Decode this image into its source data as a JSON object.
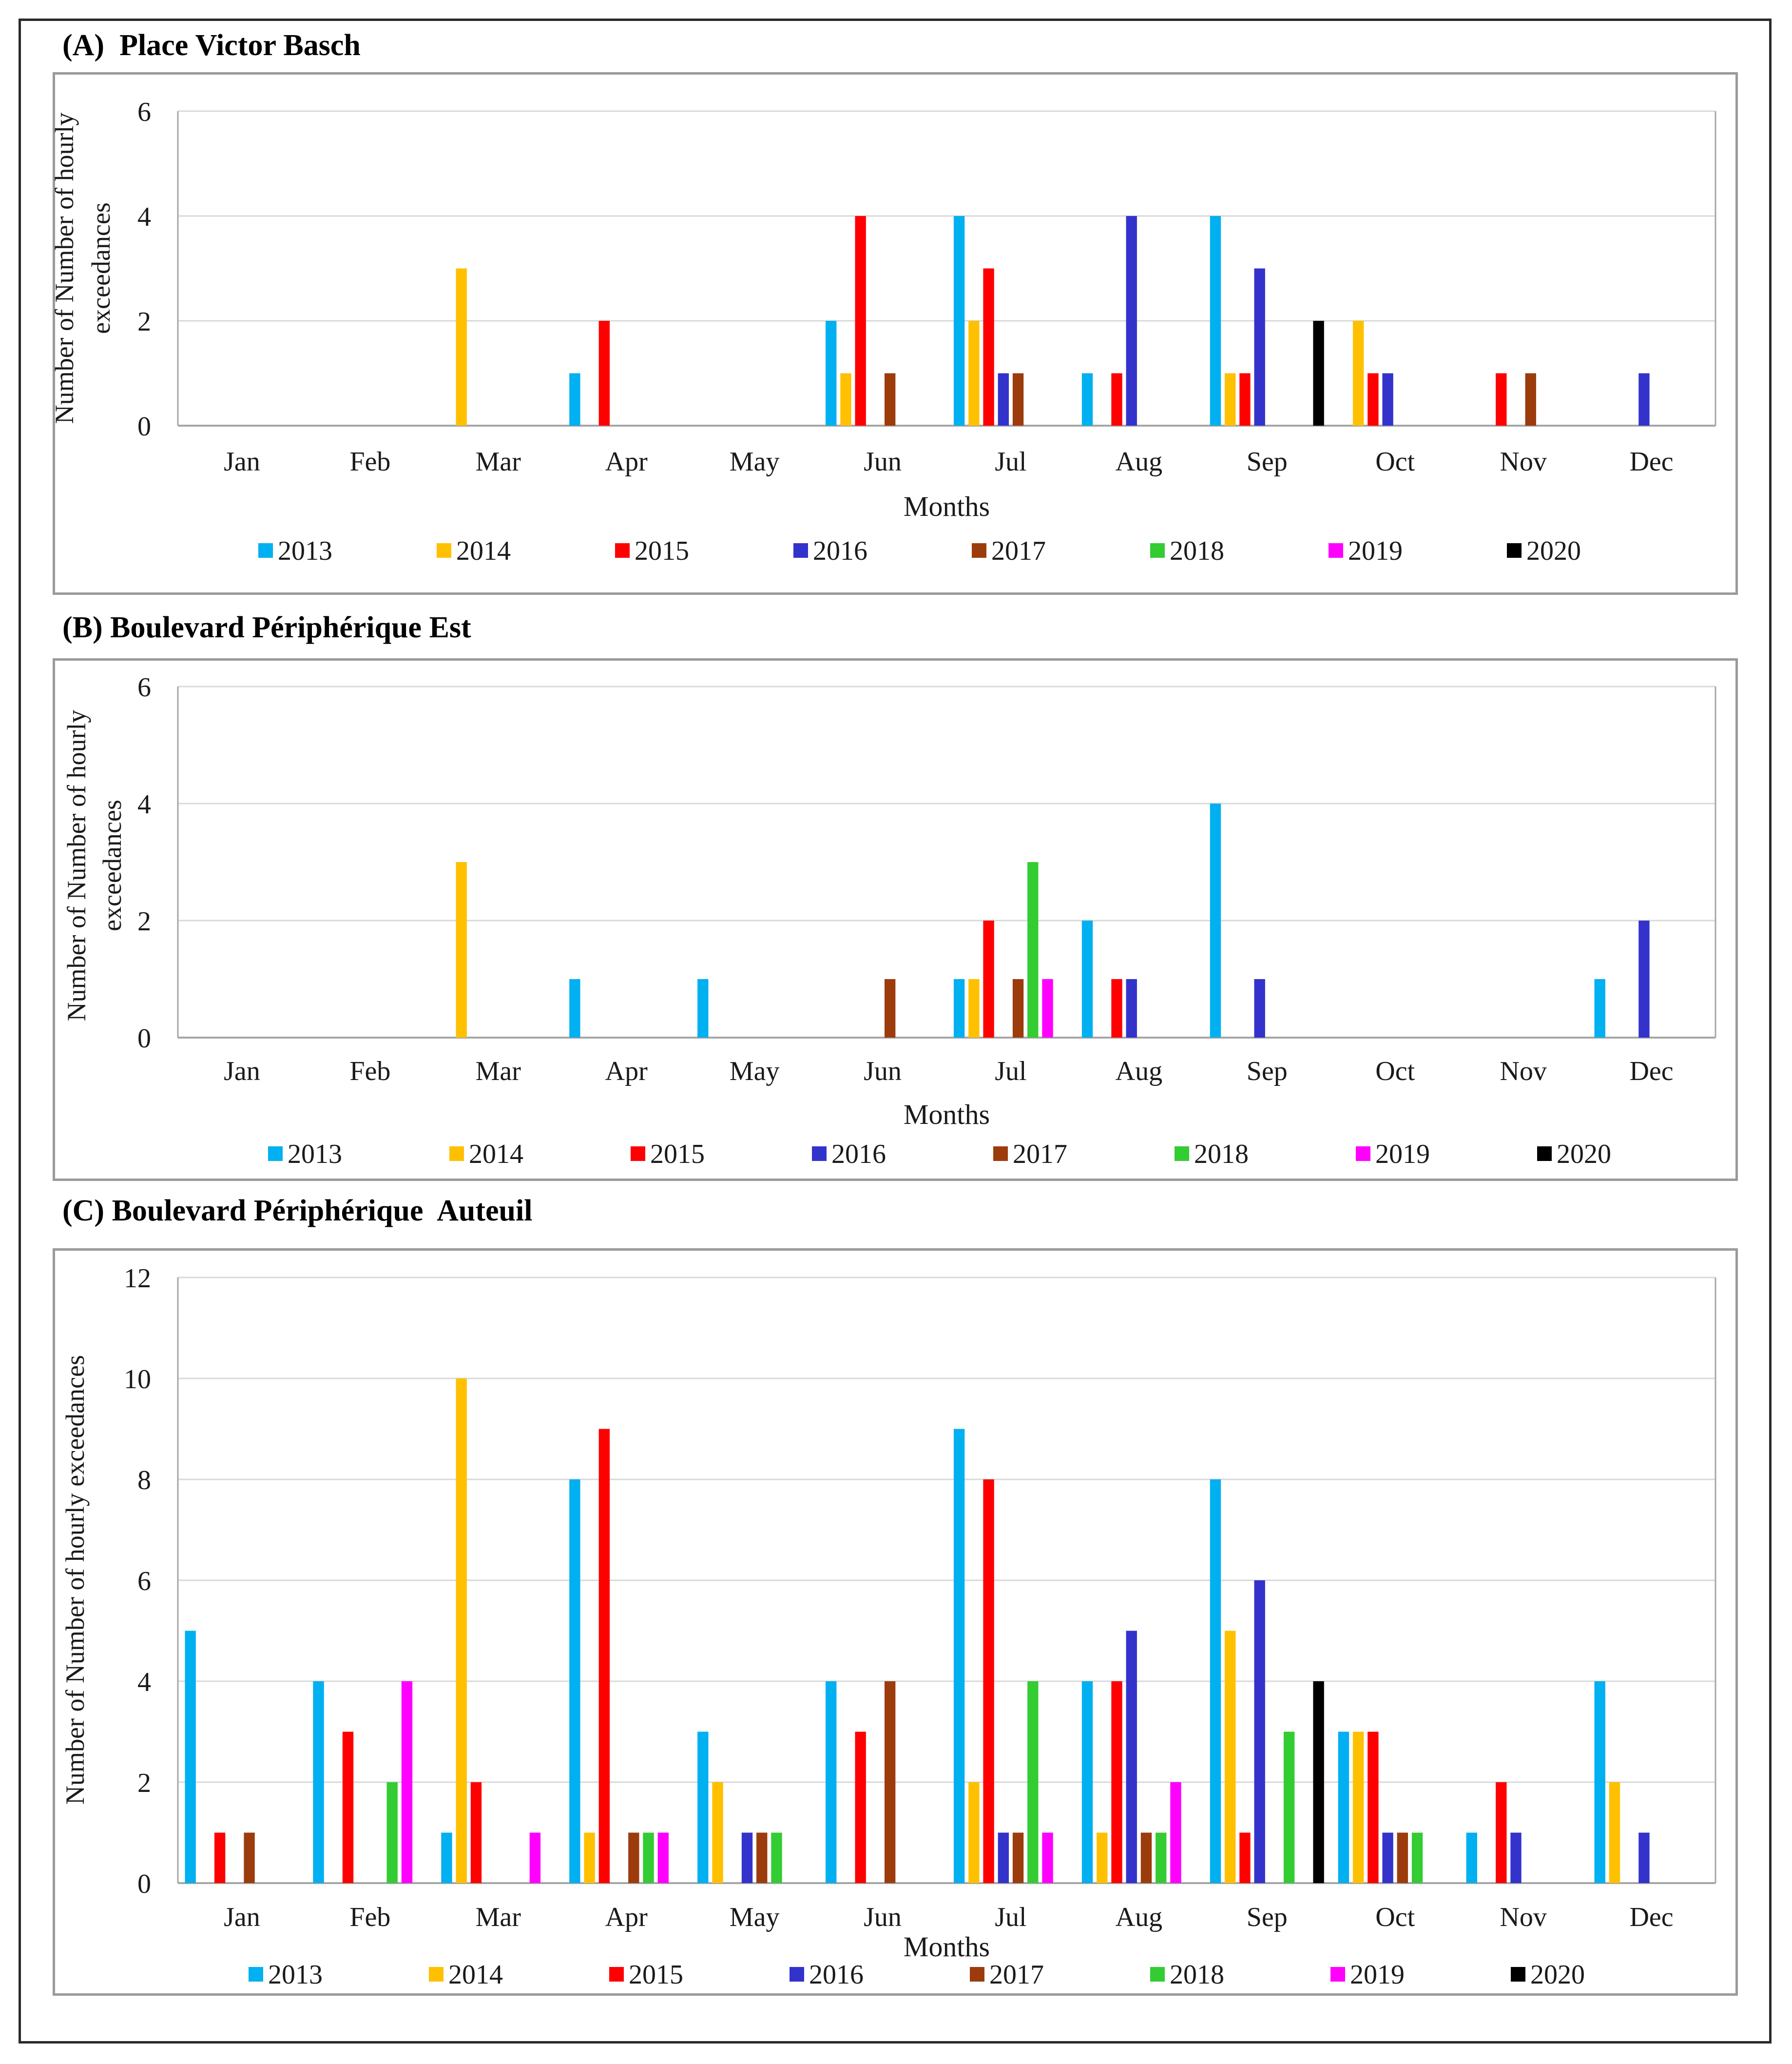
{
  "months": [
    "Jan",
    "Feb",
    "Mar",
    "Apr",
    "May",
    "Jun",
    "Jul",
    "Aug",
    "Sep",
    "Oct",
    "Nov",
    "Dec"
  ],
  "years": [
    "2013",
    "2014",
    "2015",
    "2016",
    "2017",
    "2018",
    "2019",
    "2020"
  ],
  "colors": {
    "2013": "#00b0f0",
    "2014": "#ffc000",
    "2015": "#ff0000",
    "2016": "#3333cc",
    "2017": "#9c3c0c",
    "2018": "#33cc33",
    "2019": "#ff00ff",
    "2020": "#000000",
    "grid": "#d9d9d9",
    "axis": "#a6a6a6"
  },
  "chart_data": [
    {
      "type": "bar",
      "panel_label": "(A)",
      "title": "Place Victor Basch",
      "xlabel": "Months",
      "ylabel_lines": [
        "Number of Number of hourly",
        "exceedances"
      ],
      "ylim": [
        0,
        6
      ],
      "yticks": [
        0,
        2,
        4,
        6
      ],
      "categories": [
        "Jan",
        "Feb",
        "Mar",
        "Apr",
        "May",
        "Jun",
        "Jul",
        "Aug",
        "Sep",
        "Oct",
        "Nov",
        "Dec"
      ],
      "series": [
        {
          "name": "2013",
          "values": [
            0,
            0,
            0,
            1,
            0,
            2,
            4,
            1,
            4,
            0,
            0,
            0
          ]
        },
        {
          "name": "2014",
          "values": [
            0,
            0,
            3,
            0,
            0,
            1,
            2,
            0,
            1,
            2,
            0,
            0
          ]
        },
        {
          "name": "2015",
          "values": [
            0,
            0,
            0,
            2,
            0,
            4,
            3,
            1,
            1,
            1,
            1,
            0
          ]
        },
        {
          "name": "2016",
          "values": [
            0,
            0,
            0,
            0,
            0,
            0,
            1,
            4,
            3,
            1,
            0,
            1
          ]
        },
        {
          "name": "2017",
          "values": [
            0,
            0,
            0,
            0,
            0,
            1,
            1,
            0,
            0,
            0,
            1,
            0
          ]
        },
        {
          "name": "2018",
          "values": [
            0,
            0,
            0,
            0,
            0,
            0,
            0,
            0,
            0,
            0,
            0,
            0
          ]
        },
        {
          "name": "2019",
          "values": [
            0,
            0,
            0,
            0,
            0,
            0,
            0,
            0,
            0,
            0,
            0,
            0
          ]
        },
        {
          "name": "2020",
          "values": [
            0,
            0,
            0,
            0,
            0,
            0,
            0,
            0,
            2,
            0,
            0,
            0
          ]
        }
      ]
    },
    {
      "type": "bar",
      "panel_label": "(B)",
      "title": "Boulevard Périphérique Est",
      "xlabel": "Months",
      "ylabel_lines": [
        "Number of Number of hourly",
        "exceedances"
      ],
      "ylim": [
        0,
        6
      ],
      "yticks": [
        0,
        2,
        4,
        6
      ],
      "categories": [
        "Jan",
        "Feb",
        "Mar",
        "Apr",
        "May",
        "Jun",
        "Jul",
        "Aug",
        "Sep",
        "Oct",
        "Nov",
        "Dec"
      ],
      "series": [
        {
          "name": "2013",
          "values": [
            0,
            0,
            0,
            1,
            1,
            0,
            1,
            2,
            4,
            0,
            0,
            1
          ]
        },
        {
          "name": "2014",
          "values": [
            0,
            0,
            3,
            0,
            0,
            0,
            1,
            0,
            0,
            0,
            0,
            0
          ]
        },
        {
          "name": "2015",
          "values": [
            0,
            0,
            0,
            0,
            0,
            0,
            2,
            1,
            0,
            0,
            0,
            0
          ]
        },
        {
          "name": "2016",
          "values": [
            0,
            0,
            0,
            0,
            0,
            0,
            0,
            1,
            1,
            0,
            0,
            2
          ]
        },
        {
          "name": "2017",
          "values": [
            0,
            0,
            0,
            0,
            0,
            1,
            1,
            0,
            0,
            0,
            0,
            0
          ]
        },
        {
          "name": "2018",
          "values": [
            0,
            0,
            0,
            0,
            0,
            0,
            3,
            0,
            0,
            0,
            0,
            0
          ]
        },
        {
          "name": "2019",
          "values": [
            0,
            0,
            0,
            0,
            0,
            0,
            1,
            0,
            0,
            0,
            0,
            0
          ]
        },
        {
          "name": "2020",
          "values": [
            0,
            0,
            0,
            0,
            0,
            0,
            0,
            0,
            0,
            0,
            0,
            0
          ]
        }
      ]
    },
    {
      "type": "bar",
      "panel_label": "(C)",
      "title": "Boulevard Périphérique  Auteuil",
      "xlabel": "Months",
      "ylabel_lines": [
        "Number of Number of hourly exceedances"
      ],
      "ylim": [
        0,
        12
      ],
      "yticks": [
        0,
        2,
        4,
        6,
        8,
        10,
        12
      ],
      "categories": [
        "Jan",
        "Feb",
        "Mar",
        "Apr",
        "May",
        "Jun",
        "Jul",
        "Aug",
        "Sep",
        "Oct",
        "Nov",
        "Dec"
      ],
      "series": [
        {
          "name": "2013",
          "values": [
            5,
            4,
            1,
            8,
            3,
            4,
            9,
            4,
            8,
            3,
            1,
            4
          ]
        },
        {
          "name": "2014",
          "values": [
            0,
            0,
            10,
            1,
            2,
            0,
            2,
            1,
            5,
            3,
            0,
            2
          ]
        },
        {
          "name": "2015",
          "values": [
            1,
            3,
            2,
            9,
            0,
            3,
            8,
            4,
            1,
            3,
            2,
            0
          ]
        },
        {
          "name": "2016",
          "values": [
            0,
            0,
            0,
            0,
            1,
            0,
            1,
            5,
            6,
            1,
            1,
            1
          ]
        },
        {
          "name": "2017",
          "values": [
            1,
            0,
            0,
            1,
            1,
            4,
            1,
            1,
            0,
            1,
            0,
            0
          ]
        },
        {
          "name": "2018",
          "values": [
            0,
            2,
            0,
            1,
            1,
            0,
            4,
            1,
            3,
            1,
            0,
            0
          ]
        },
        {
          "name": "2019",
          "values": [
            0,
            4,
            1,
            1,
            0,
            0,
            1,
            2,
            0,
            0,
            0,
            0
          ]
        },
        {
          "name": "2020",
          "values": [
            0,
            0,
            0,
            0,
            0,
            0,
            0,
            0,
            4,
            0,
            0,
            0
          ]
        }
      ]
    }
  ]
}
